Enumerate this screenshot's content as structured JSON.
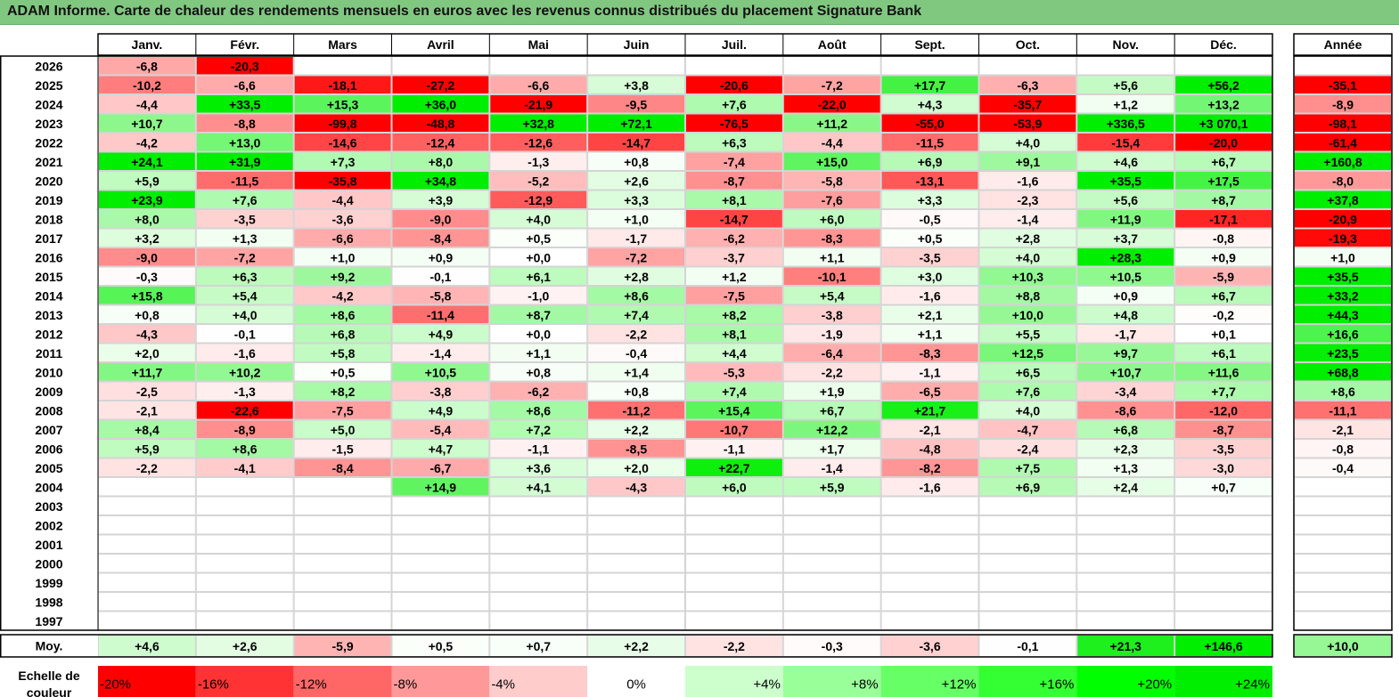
{
  "title": "ADAM Informe. Carte de chaleur des rendements mensuels en euros avec les revenus connus distribués du placement Signature Bank",
  "chart_data": {
    "type": "heatmap",
    "months": [
      "Janv.",
      "Févr.",
      "Mars",
      "Avril",
      "Mai",
      "Juin",
      "Juil.",
      "Août",
      "Sept.",
      "Oct.",
      "Nov.",
      "Déc."
    ],
    "year_label": "Année",
    "avg_label": "Moy.",
    "scale_label_line1": "Echelle de",
    "scale_label_line2": "couleur",
    "rows": [
      {
        "year": "2026",
        "values": [
          "-6,8",
          "-20,3",
          "",
          "",
          "",
          "",
          "",
          "",
          "",
          "",
          "",
          ""
        ],
        "annual": ""
      },
      {
        "year": "2025",
        "values": [
          "-10,2",
          "-6,6",
          "-18,1",
          "-27,2",
          "-6,6",
          "+3,8",
          "-20,6",
          "-7,2",
          "+17,7",
          "-6,3",
          "+5,6",
          "+56,2"
        ],
        "annual": "-35,1"
      },
      {
        "year": "2024",
        "values": [
          "-4,4",
          "+33,5",
          "+15,3",
          "+36,0",
          "-21,9",
          "-9,5",
          "+7,6",
          "-22,0",
          "+4,3",
          "-35,7",
          "+1,2",
          "+13,2"
        ],
        "annual": "-8,9"
      },
      {
        "year": "2023",
        "values": [
          "+10,7",
          "-8,8",
          "-99,8",
          "-48,8",
          "+32,8",
          "+72,1",
          "-76,5",
          "+11,2",
          "-55,0",
          "-53,9",
          "+336,5",
          "+3 070,1"
        ],
        "annual": "-98,1"
      },
      {
        "year": "2022",
        "values": [
          "-4,2",
          "+13,0",
          "-14,6",
          "-12,4",
          "-12,6",
          "-14,7",
          "+6,3",
          "-4,4",
          "-11,5",
          "+4,0",
          "-15,4",
          "-20,0"
        ],
        "annual": "-61,4"
      },
      {
        "year": "2021",
        "values": [
          "+24,1",
          "+31,9",
          "+7,3",
          "+8,0",
          "-1,3",
          "+0,8",
          "-7,4",
          "+15,0",
          "+6,9",
          "+9,1",
          "+4,6",
          "+6,7"
        ],
        "annual": "+160,8"
      },
      {
        "year": "2020",
        "values": [
          "+5,9",
          "-11,5",
          "-35,8",
          "+34,8",
          "-5,2",
          "+2,6",
          "-8,7",
          "-5,8",
          "-13,1",
          "-1,6",
          "+35,5",
          "+17,5"
        ],
        "annual": "-8,0"
      },
      {
        "year": "2019",
        "values": [
          "+23,9",
          "+7,6",
          "-4,4",
          "+3,9",
          "-12,9",
          "+3,3",
          "+8,1",
          "-7,6",
          "+3,3",
          "-2,3",
          "+5,6",
          "+8,7"
        ],
        "annual": "+37,8"
      },
      {
        "year": "2018",
        "values": [
          "+8,0",
          "-3,5",
          "-3,6",
          "-9,0",
          "+4,0",
          "+1,0",
          "-14,7",
          "+6,0",
          "-0,5",
          "-1,4",
          "+11,9",
          "-17,1"
        ],
        "annual": "-20,9"
      },
      {
        "year": "2017",
        "values": [
          "+3,2",
          "+1,3",
          "-6,6",
          "-8,4",
          "+0,5",
          "-1,7",
          "-6,2",
          "-8,3",
          "+0,5",
          "+2,8",
          "+3,7",
          "-0,8"
        ],
        "annual": "-19,3"
      },
      {
        "year": "2016",
        "values": [
          "-9,0",
          "-7,2",
          "+1,0",
          "+0,9",
          "+0,0",
          "-7,2",
          "-3,7",
          "+1,1",
          "-3,5",
          "+4,0",
          "+28,3",
          "+0,9"
        ],
        "annual": "+1,0"
      },
      {
        "year": "2015",
        "values": [
          "-0,3",
          "+6,3",
          "+9,2",
          "-0,1",
          "+6,1",
          "+2,8",
          "+1,2",
          "-10,1",
          "+3,0",
          "+10,3",
          "+10,5",
          "-5,9"
        ],
        "annual": "+35,5"
      },
      {
        "year": "2014",
        "values": [
          "+15,8",
          "+5,4",
          "-4,2",
          "-5,8",
          "-1,0",
          "+8,6",
          "-7,5",
          "+5,4",
          "-1,6",
          "+8,8",
          "+0,9",
          "+6,7"
        ],
        "annual": "+33,2"
      },
      {
        "year": "2013",
        "values": [
          "+0,8",
          "+4,0",
          "+8,6",
          "-11,4",
          "+8,7",
          "+7,4",
          "+8,2",
          "-3,8",
          "+2,1",
          "+10,0",
          "+4,8",
          "-0,2"
        ],
        "annual": "+44,3"
      },
      {
        "year": "2012",
        "values": [
          "-4,3",
          "-0,1",
          "+6,8",
          "+4,9",
          "+0,0",
          "-2,2",
          "+8,1",
          "-1,9",
          "+1,1",
          "+5,5",
          "-1,7",
          "+0,1"
        ],
        "annual": "+16,6"
      },
      {
        "year": "2011",
        "values": [
          "+2,0",
          "-1,6",
          "+5,8",
          "-1,4",
          "+1,1",
          "-0,4",
          "+4,4",
          "-6,4",
          "-8,3",
          "+12,5",
          "+9,7",
          "+6,1"
        ],
        "annual": "+23,5"
      },
      {
        "year": "2010",
        "values": [
          "+11,7",
          "+10,2",
          "+0,5",
          "+10,5",
          "+0,8",
          "+1,4",
          "-5,3",
          "-2,2",
          "-1,1",
          "+6,5",
          "+10,7",
          "+11,6"
        ],
        "annual": "+68,8"
      },
      {
        "year": "2009",
        "values": [
          "-2,5",
          "-1,3",
          "+8,2",
          "-3,8",
          "-6,2",
          "+0,8",
          "+7,4",
          "+1,9",
          "-6,5",
          "+7,6",
          "-3,4",
          "+7,7"
        ],
        "annual": "+8,6"
      },
      {
        "year": "2008",
        "values": [
          "-2,1",
          "-22,6",
          "-7,5",
          "+4,9",
          "+8,6",
          "-11,2",
          "+15,4",
          "+6,7",
          "+21,7",
          "+4,0",
          "-8,6",
          "-12,0"
        ],
        "annual": "-11,1"
      },
      {
        "year": "2007",
        "values": [
          "+8,4",
          "-8,9",
          "+5,0",
          "-5,4",
          "+7,2",
          "+2,2",
          "-10,7",
          "+12,2",
          "-2,1",
          "-4,7",
          "+6,8",
          "-8,7"
        ],
        "annual": "-2,1"
      },
      {
        "year": "2006",
        "values": [
          "+5,9",
          "+8,6",
          "-1,5",
          "+4,7",
          "-1,1",
          "-8,5",
          "-1,1",
          "+1,7",
          "-4,8",
          "-2,4",
          "+2,3",
          "-3,5"
        ],
        "annual": "-0,8"
      },
      {
        "year": "2005",
        "values": [
          "-2,2",
          "-4,1",
          "-8,4",
          "-6,7",
          "+3,6",
          "+2,0",
          "+22,7",
          "-1,4",
          "-8,2",
          "+7,5",
          "+1,3",
          "-3,0"
        ],
        "annual": "-0,4"
      },
      {
        "year": "2004",
        "values": [
          "",
          "",
          "",
          "+14,9",
          "+4,1",
          "-4,3",
          "+6,0",
          "+5,9",
          "-1,6",
          "+6,9",
          "+2,4",
          "+0,7"
        ],
        "annual": ""
      },
      {
        "year": "2003",
        "values": [
          "",
          "",
          "",
          "",
          "",
          "",
          "",
          "",
          "",
          "",
          "",
          ""
        ],
        "annual": ""
      },
      {
        "year": "2002",
        "values": [
          "",
          "",
          "",
          "",
          "",
          "",
          "",
          "",
          "",
          "",
          "",
          ""
        ],
        "annual": ""
      },
      {
        "year": "2001",
        "values": [
          "",
          "",
          "",
          "",
          "",
          "",
          "",
          "",
          "",
          "",
          "",
          ""
        ],
        "annual": ""
      },
      {
        "year": "2000",
        "values": [
          "",
          "",
          "",
          "",
          "",
          "",
          "",
          "",
          "",
          "",
          "",
          ""
        ],
        "annual": ""
      },
      {
        "year": "1999",
        "values": [
          "",
          "",
          "",
          "",
          "",
          "",
          "",
          "",
          "",
          "",
          "",
          ""
        ],
        "annual": ""
      },
      {
        "year": "1998",
        "values": [
          "",
          "",
          "",
          "",
          "",
          "",
          "",
          "",
          "",
          "",
          "",
          ""
        ],
        "annual": ""
      },
      {
        "year": "1997",
        "values": [
          "",
          "",
          "",
          "",
          "",
          "",
          "",
          "",
          "",
          "",
          "",
          ""
        ],
        "annual": ""
      }
    ],
    "averages": {
      "values": [
        "+4,6",
        "+2,6",
        "-5,9",
        "+0,5",
        "+0,7",
        "+2,2",
        "-2,2",
        "-0,3",
        "-3,6",
        "-0,1",
        "+21,3",
        "+146,6"
      ],
      "annual": "+10,0"
    },
    "scale": [
      {
        "label": "-20%",
        "color": "#ff0000"
      },
      {
        "label": "-16%",
        "color": "#ff3333"
      },
      {
        "label": "-12%",
        "color": "#ff6666"
      },
      {
        "label": "-8%",
        "color": "#ff9999"
      },
      {
        "label": "-4%",
        "color": "#ffcccc"
      },
      {
        "label": "0%",
        "color": "#ffffff"
      },
      {
        "label": "+4%",
        "color": "#ccffcc"
      },
      {
        "label": "+8%",
        "color": "#99ff99"
      },
      {
        "label": "+12%",
        "color": "#66ff66"
      },
      {
        "label": "+16%",
        "color": "#33ff33"
      },
      {
        "label": "+20%",
        "color": "#00ff00"
      },
      {
        "label": "+24%",
        "color": "#00ee00"
      }
    ]
  }
}
